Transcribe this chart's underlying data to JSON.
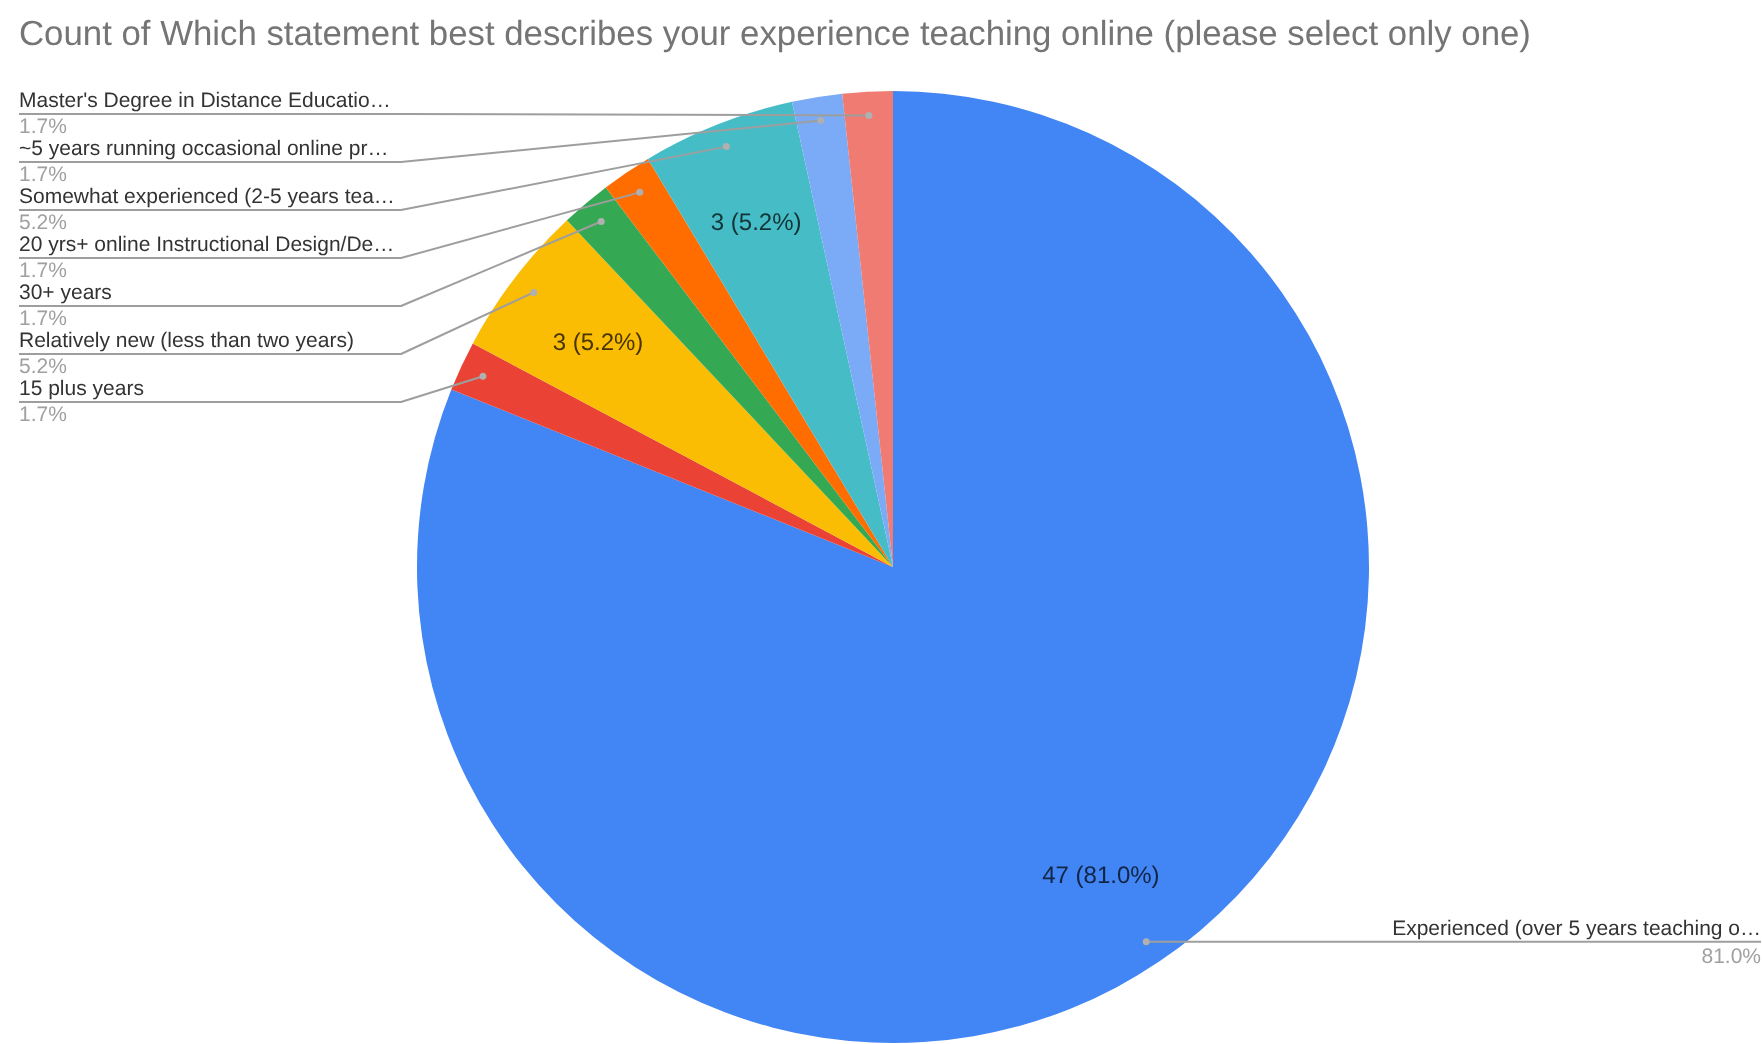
{
  "chart_data": {
    "type": "pie",
    "title": "Count of Which statement best describes your experience teaching online (please select only one)",
    "categories": [
      "Experienced (over 5 years teaching o…",
      "15 plus years",
      "Relatively new (less than two years)",
      "30+ years",
      "20 yrs+ online Instructional Design/De…",
      "Somewhat experienced (2-5 years tea…",
      "~5 years running occasional online pr…",
      "Master's Degree in Distance Educatio…"
    ],
    "values": [
      81.0,
      1.7,
      5.2,
      1.7,
      1.7,
      5.2,
      1.7,
      1.7
    ],
    "colors": [
      "#4285f4",
      "#ea4335",
      "#fbbc04",
      "#34a853",
      "#ff6d01",
      "#46bdc6",
      "#7baaf7",
      "#f07b72"
    ],
    "value_labels": [
      "81.0%",
      "1.7%",
      "5.2%",
      "1.7%",
      "1.7%",
      "5.2%",
      "1.7%",
      "1.7%"
    ],
    "annotations": [
      {
        "text": "47 (81.0%)",
        "x": "Experienced (over 5 years teaching o…"
      },
      {
        "text": "3 (5.2%)",
        "x": "Relatively new (less than two years)"
      },
      {
        "text": "3 (5.2%)",
        "x": "Somewhat experienced (2-5 years tea…"
      }
    ]
  }
}
